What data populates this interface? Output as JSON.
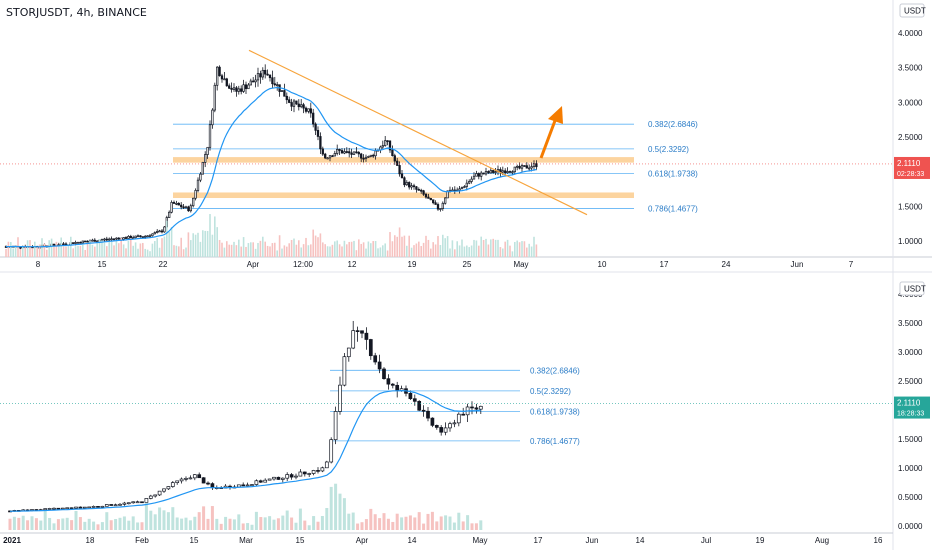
{
  "colors": {
    "up": "#ffffff",
    "down": "#131722",
    "wick": "#131722",
    "ema": "#2196f3",
    "trendline": "#f7a43c",
    "zone": "#fbc57f",
    "fib": "#5fb3f5",
    "fib_text": "#2a7cc7",
    "arrow": "#f57c00",
    "price_tag_top": "#ef5350",
    "price_tag_bottom": "#26a69a",
    "axis_text": "#131722",
    "grid": "#e0e3eb"
  },
  "top_pane": {
    "title": "STORJUSDT, 4h, BINANCE",
    "currency_badge": "USDT",
    "price_tag": {
      "price": "2.1110",
      "countdown": "02:28:33",
      "value": 2.111
    },
    "chart_data": {
      "type": "candlestick",
      "timeframe": "4h",
      "symbol": "STORJUSDT",
      "exchange": "BINANCE",
      "ylim": [
        0.85,
        4.15
      ],
      "y_ticks": [
        "1.0000",
        "1.5000",
        "2.0000",
        "2.5000",
        "3.0000",
        "3.5000",
        "4.0000"
      ],
      "y_tick_values": [
        1.0,
        1.5,
        2.0,
        2.5,
        3.0,
        3.5,
        4.0
      ],
      "x_ticks": [
        "8",
        "15",
        "22",
        "Apr",
        "12:00",
        "12",
        "19",
        "25",
        "May",
        "10",
        "17",
        "24",
        "Jun",
        "7"
      ],
      "series_anchors": [
        {
          "x": "Mar 8",
          "close": 0.92
        },
        {
          "x": "Mar 15",
          "close": 1.02
        },
        {
          "x": "Mar 20",
          "close": 1.07
        },
        {
          "x": "Mar 22",
          "close": 1.15
        },
        {
          "x": "Mar 23",
          "close": 1.55
        },
        {
          "x": "Mar 25",
          "close": 1.45
        },
        {
          "x": "Mar 27",
          "close": 2.4
        },
        {
          "x": "Mar 28",
          "close": 3.5
        },
        {
          "x": "Mar 29",
          "close": 3.3
        },
        {
          "x": "Mar 30",
          "close": 3.15
        },
        {
          "x": "Apr 1",
          "close": 3.3
        },
        {
          "x": "Apr 2",
          "close": 3.45
        },
        {
          "x": "Apr 4",
          "close": 3.0
        },
        {
          "x": "Apr 6",
          "close": 2.85
        },
        {
          "x": "Apr 8",
          "close": 2.2
        },
        {
          "x": "Apr 10",
          "close": 2.3
        },
        {
          "x": "Apr 14",
          "close": 2.2
        },
        {
          "x": "Apr 16",
          "close": 2.45
        },
        {
          "x": "Apr 18",
          "close": 1.85
        },
        {
          "x": "Apr 20",
          "close": 1.7
        },
        {
          "x": "Apr 22",
          "close": 1.45
        },
        {
          "x": "Apr 23",
          "close": 1.75
        },
        {
          "x": "Apr 24",
          "close": 1.72
        },
        {
          "x": "Apr 26",
          "close": 1.95
        },
        {
          "x": "Apr 28",
          "close": 2.0
        },
        {
          "x": "May 1",
          "close": 2.05
        },
        {
          "x": "May 3",
          "close": 2.11
        }
      ],
      "fib_levels": [
        {
          "label": "0.382(2.6846)",
          "value": 2.6846
        },
        {
          "label": "0.5(2.3292)",
          "value": 2.3292
        },
        {
          "label": "0.618(1.9738)",
          "value": 1.9738
        },
        {
          "label": "0.786(1.4677)",
          "value": 1.4677
        }
      ],
      "zones": [
        {
          "from": 2.13,
          "to": 2.21
        },
        {
          "from": 1.62,
          "to": 1.7
        }
      ],
      "trendline": {
        "from": {
          "x": "Mar 31",
          "price": 3.75
        },
        "to": {
          "x": "May 5",
          "price": 1.38
        }
      },
      "arrow": {
        "note": "upward projection"
      }
    }
  },
  "bottom_pane": {
    "currency_badge": "USDT",
    "price_tag": {
      "price": "2.1110",
      "countdown": "18:28:33",
      "value": 2.111
    },
    "chart_data": {
      "type": "candlestick",
      "timeframe": "1D",
      "ylim": [
        -0.05,
        4.15
      ],
      "y_ticks": [
        "0.0000",
        "0.5000",
        "1.0000",
        "1.5000",
        "2.0000",
        "2.5000",
        "3.0000",
        "3.5000",
        "4.0000"
      ],
      "y_tick_values": [
        0,
        0.5,
        1.0,
        1.5,
        2.0,
        2.5,
        3.0,
        3.5,
        4.0
      ],
      "x_ticks": [
        "2021",
        "18",
        "Feb",
        "15",
        "Mar",
        "15",
        "Apr",
        "14",
        "May",
        "17",
        "Jun",
        "14",
        "Jul",
        "19",
        "Aug",
        "16"
      ],
      "fib_levels": [
        {
          "label": "0.382(2.6846)",
          "value": 2.6846
        },
        {
          "label": "0.5(2.3292)",
          "value": 2.3292
        },
        {
          "label": "0.618(1.9738)",
          "value": 1.9738
        },
        {
          "label": "0.786(1.4677)",
          "value": 1.4677
        }
      ],
      "series_anchors": [
        {
          "x": "Jan 1",
          "close": 0.26
        },
        {
          "x": "Jan 18",
          "close": 0.33
        },
        {
          "x": "Feb 1",
          "close": 0.42
        },
        {
          "x": "Feb 10",
          "close": 0.75
        },
        {
          "x": "Feb 15",
          "close": 0.88
        },
        {
          "x": "Feb 20",
          "close": 0.65
        },
        {
          "x": "Mar 1",
          "close": 0.72
        },
        {
          "x": "Mar 15",
          "close": 0.9
        },
        {
          "x": "Mar 22",
          "close": 1.0
        },
        {
          "x": "Mar 24",
          "close": 1.6
        },
        {
          "x": "Mar 27",
          "close": 2.9
        },
        {
          "x": "Mar 29",
          "close": 3.3
        },
        {
          "x": "Apr 2",
          "close": 3.2
        },
        {
          "x": "Apr 8",
          "close": 2.4
        },
        {
          "x": "Apr 14",
          "close": 2.25
        },
        {
          "x": "Apr 18",
          "close": 1.8
        },
        {
          "x": "Apr 22",
          "close": 1.6
        },
        {
          "x": "Apr 26",
          "close": 1.95
        },
        {
          "x": "May 1",
          "close": 2.05
        },
        {
          "x": "May 3",
          "close": 2.11
        }
      ]
    }
  }
}
